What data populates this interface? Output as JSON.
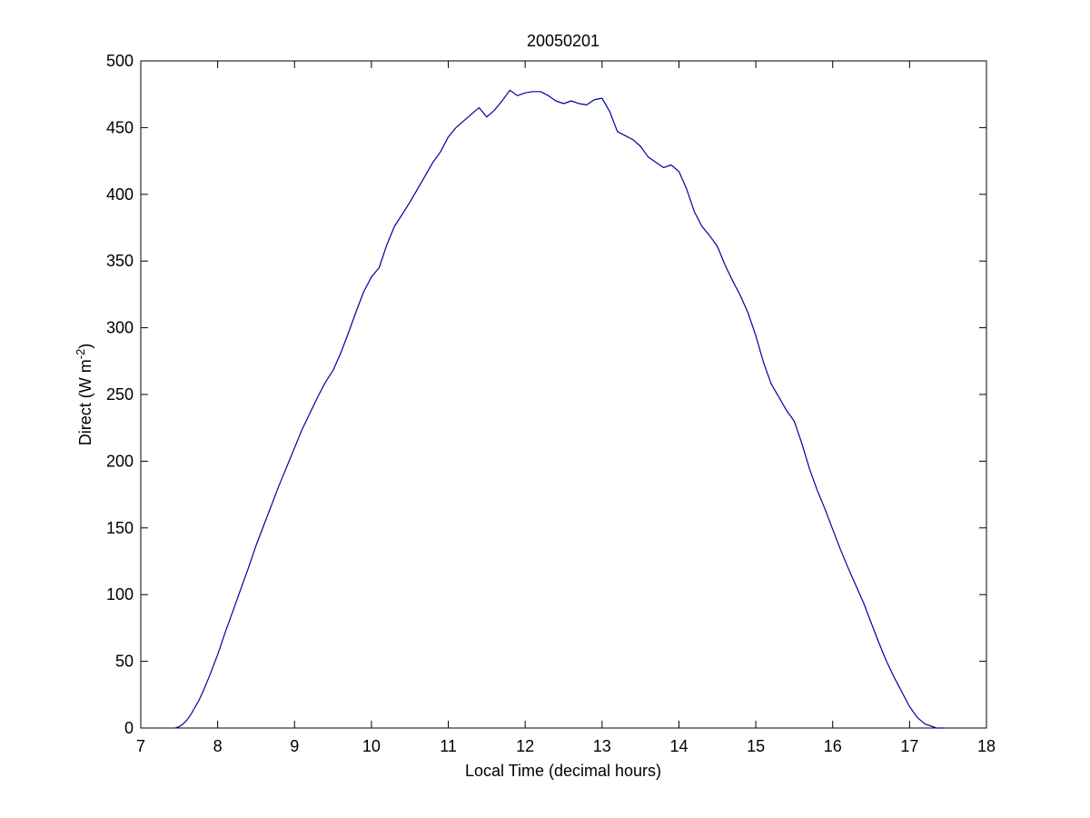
{
  "chart_data": {
    "type": "line",
    "title": "20050201",
    "xlabel": "Local Time (decimal hours)",
    "ylabel": {
      "main": "Direct (W m",
      "superscript": "-2",
      "closing": ")"
    },
    "xlim": [
      7,
      18
    ],
    "ylim": [
      0,
      500
    ],
    "xticks": [
      7,
      8,
      9,
      10,
      11,
      12,
      13,
      14,
      15,
      16,
      17,
      18
    ],
    "yticks": [
      0,
      50,
      100,
      150,
      200,
      250,
      300,
      350,
      400,
      450,
      500
    ],
    "grid": false,
    "line_color": "#0000a0",
    "series": [
      {
        "x": [
          7.45,
          7.5,
          7.55,
          7.6,
          7.65,
          7.7,
          7.75,
          7.8,
          7.9,
          8.0,
          8.1,
          8.2,
          8.3,
          8.4,
          8.5,
          8.6,
          8.7,
          8.8,
          8.9,
          9.0,
          9.1,
          9.2,
          9.3,
          9.4,
          9.5,
          9.6,
          9.7,
          9.8,
          9.9,
          10.0,
          10.1,
          10.2,
          10.3,
          10.4,
          10.5,
          10.6,
          10.7,
          10.8,
          10.9,
          11.0,
          11.1,
          11.2,
          11.3,
          11.4,
          11.5,
          11.6,
          11.7,
          11.8,
          11.9,
          12.0,
          12.1,
          12.2,
          12.3,
          12.4,
          12.5,
          12.6,
          12.7,
          12.8,
          12.9,
          13.0,
          13.1,
          13.2,
          13.3,
          13.4,
          13.5,
          13.6,
          13.7,
          13.8,
          13.9,
          14.0,
          14.1,
          14.2,
          14.3,
          14.4,
          14.5,
          14.6,
          14.7,
          14.8,
          14.9,
          15.0,
          15.1,
          15.2,
          15.3,
          15.4,
          15.5,
          15.6,
          15.7,
          15.8,
          15.9,
          16.0,
          16.1,
          16.2,
          16.3,
          16.4,
          16.5,
          16.6,
          16.7,
          16.8,
          16.9,
          17.0,
          17.1,
          17.2,
          17.3,
          17.35,
          17.4,
          17.45
        ],
        "y": [
          0,
          1,
          3,
          6,
          10,
          15,
          20,
          26,
          40,
          55,
          72,
          88,
          104,
          120,
          137,
          152,
          167,
          182,
          196,
          210,
          224,
          236,
          248,
          259,
          268,
          281,
          296,
          312,
          327,
          338,
          345,
          362,
          376,
          385,
          394,
          404,
          414,
          424,
          432,
          443,
          450,
          455,
          460,
          465,
          458,
          463,
          470,
          478,
          474,
          476,
          477,
          477,
          474,
          470,
          468,
          470,
          468,
          467,
          471,
          472,
          462,
          447,
          444,
          441,
          436,
          428,
          424,
          420,
          422,
          417,
          404,
          387,
          376,
          369,
          361,
          347,
          335,
          324,
          311,
          294,
          274,
          258,
          248,
          238,
          230,
          213,
          194,
          178,
          164,
          149,
          134,
          120,
          107,
          94,
          79,
          64,
          50,
          38,
          27,
          16,
          8,
          3,
          1,
          0,
          0,
          0
        ]
      }
    ]
  }
}
